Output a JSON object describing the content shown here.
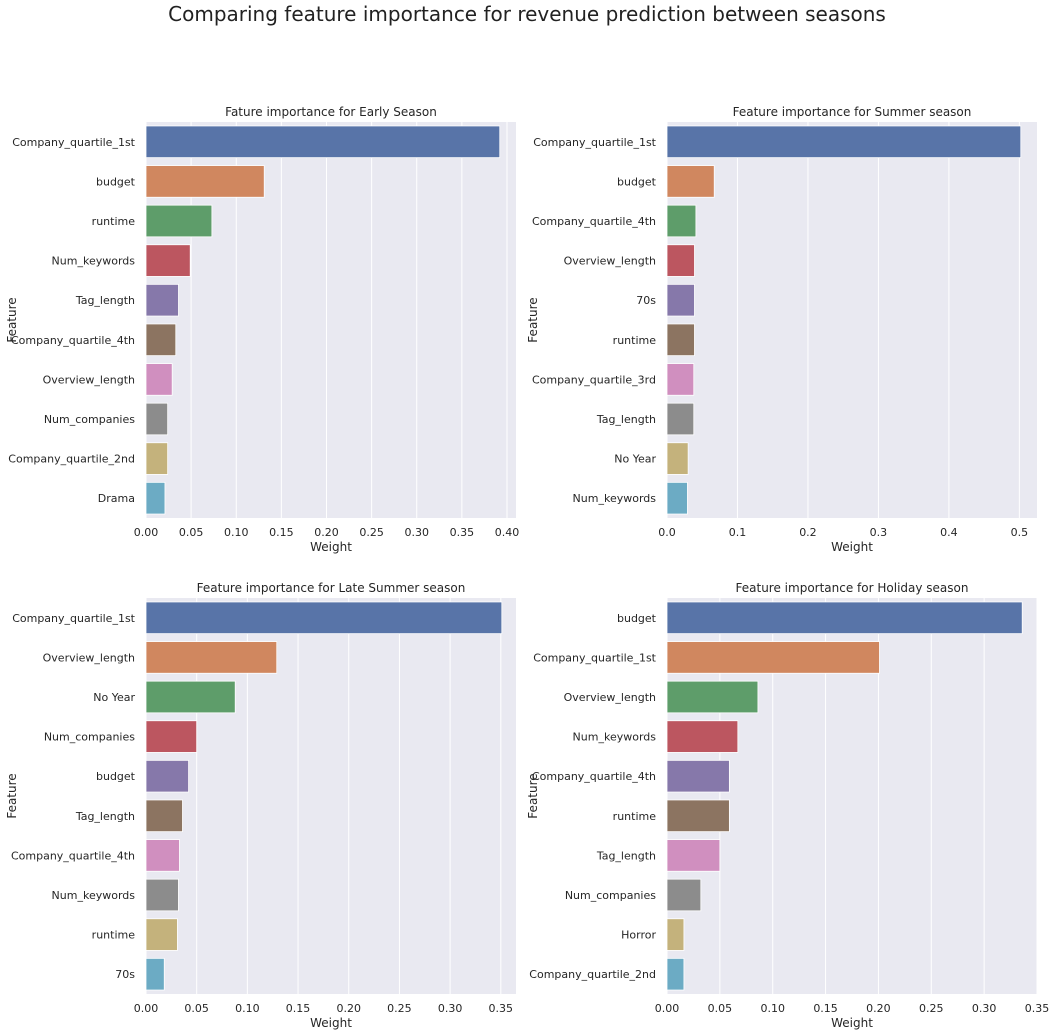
{
  "suptitle": "Comparing feature importance for revenue prediction between seasons",
  "palette": [
    "#5874a8",
    "#d0875f",
    "#5e9d6a",
    "#bc5660",
    "#8678aa",
    "#8c7461",
    "#d08fbf",
    "#8c8c8c",
    "#c4b27c",
    "#6cabc4"
  ],
  "background": "#e9e9f1",
  "chart_data": [
    {
      "type": "bar",
      "orientation": "horizontal",
      "title": "Fature importance for Early Season",
      "xlabel": "Weight",
      "ylabel": "Feature",
      "xlim": [
        0,
        0.41
      ],
      "xticks": [
        0.0,
        0.05,
        0.1,
        0.15,
        0.2,
        0.25,
        0.3,
        0.35,
        0.4
      ],
      "xtick_labels": [
        "0.00",
        "0.05",
        "0.10",
        "0.15",
        "0.20",
        "0.25",
        "0.30",
        "0.35",
        "0.40"
      ],
      "grid": true,
      "categories": [
        "Company_quartile_1st",
        "budget",
        "runtime",
        "Num_keywords",
        "Tag_length",
        "Company_quartile_4th",
        "Overview_length",
        "Num_companies",
        "Company_quartile_2nd",
        "Drama"
      ],
      "values": [
        0.392,
        0.131,
        0.073,
        0.049,
        0.036,
        0.033,
        0.029,
        0.024,
        0.024,
        0.021
      ]
    },
    {
      "type": "bar",
      "orientation": "horizontal",
      "title": "Feature importance for Summer season",
      "xlabel": "Weight",
      "ylabel": "Feature",
      "xlim": [
        0,
        0.525
      ],
      "xticks": [
        0.0,
        0.1,
        0.2,
        0.3,
        0.4,
        0.5
      ],
      "xtick_labels": [
        "0.0",
        "0.1",
        "0.2",
        "0.3",
        "0.4",
        "0.5"
      ],
      "grid": true,
      "categories": [
        "Company_quartile_1st",
        "budget",
        "Company_quartile_4th",
        "Overview_length",
        "70s",
        "runtime",
        "Company_quartile_3rd",
        "Tag_length",
        "No Year",
        "Num_keywords"
      ],
      "values": [
        0.502,
        0.067,
        0.041,
        0.039,
        0.039,
        0.039,
        0.038,
        0.038,
        0.03,
        0.029
      ]
    },
    {
      "type": "bar",
      "orientation": "horizontal",
      "title": "Feature importance for Late Summer season",
      "xlabel": "Weight",
      "ylabel": "Feature",
      "xlim": [
        0,
        0.365
      ],
      "xticks": [
        0.0,
        0.05,
        0.1,
        0.15,
        0.2,
        0.25,
        0.3,
        0.35
      ],
      "xtick_labels": [
        "0.00",
        "0.05",
        "0.10",
        "0.15",
        "0.20",
        "0.25",
        "0.30",
        "0.35"
      ],
      "grid": true,
      "categories": [
        "Company_quartile_1st",
        "Overview_length",
        "No Year",
        "Num_companies",
        "budget",
        "Tag_length",
        "Company_quartile_4th",
        "Num_keywords",
        "runtime",
        "70s"
      ],
      "values": [
        0.351,
        0.129,
        0.088,
        0.05,
        0.042,
        0.036,
        0.033,
        0.032,
        0.031,
        0.018
      ]
    },
    {
      "type": "bar",
      "orientation": "horizontal",
      "title": "Feature importance for Holiday season",
      "xlabel": "Weight",
      "ylabel": "Feature",
      "xlim": [
        0,
        0.35
      ],
      "xticks": [
        0.0,
        0.05,
        0.1,
        0.15,
        0.2,
        0.25,
        0.3,
        0.35
      ],
      "xtick_labels": [
        "0.00",
        "0.05",
        "0.10",
        "0.15",
        "0.20",
        "0.25",
        "0.30",
        "0.35"
      ],
      "grid": true,
      "categories": [
        "budget",
        "Company_quartile_1st",
        "Overview_length",
        "Num_keywords",
        "Company_quartile_4th",
        "runtime",
        "Tag_length",
        "Num_companies",
        "Horror",
        "Company_quartile_2nd"
      ],
      "values": [
        0.336,
        0.201,
        0.086,
        0.067,
        0.059,
        0.059,
        0.05,
        0.032,
        0.016,
        0.016
      ]
    }
  ]
}
